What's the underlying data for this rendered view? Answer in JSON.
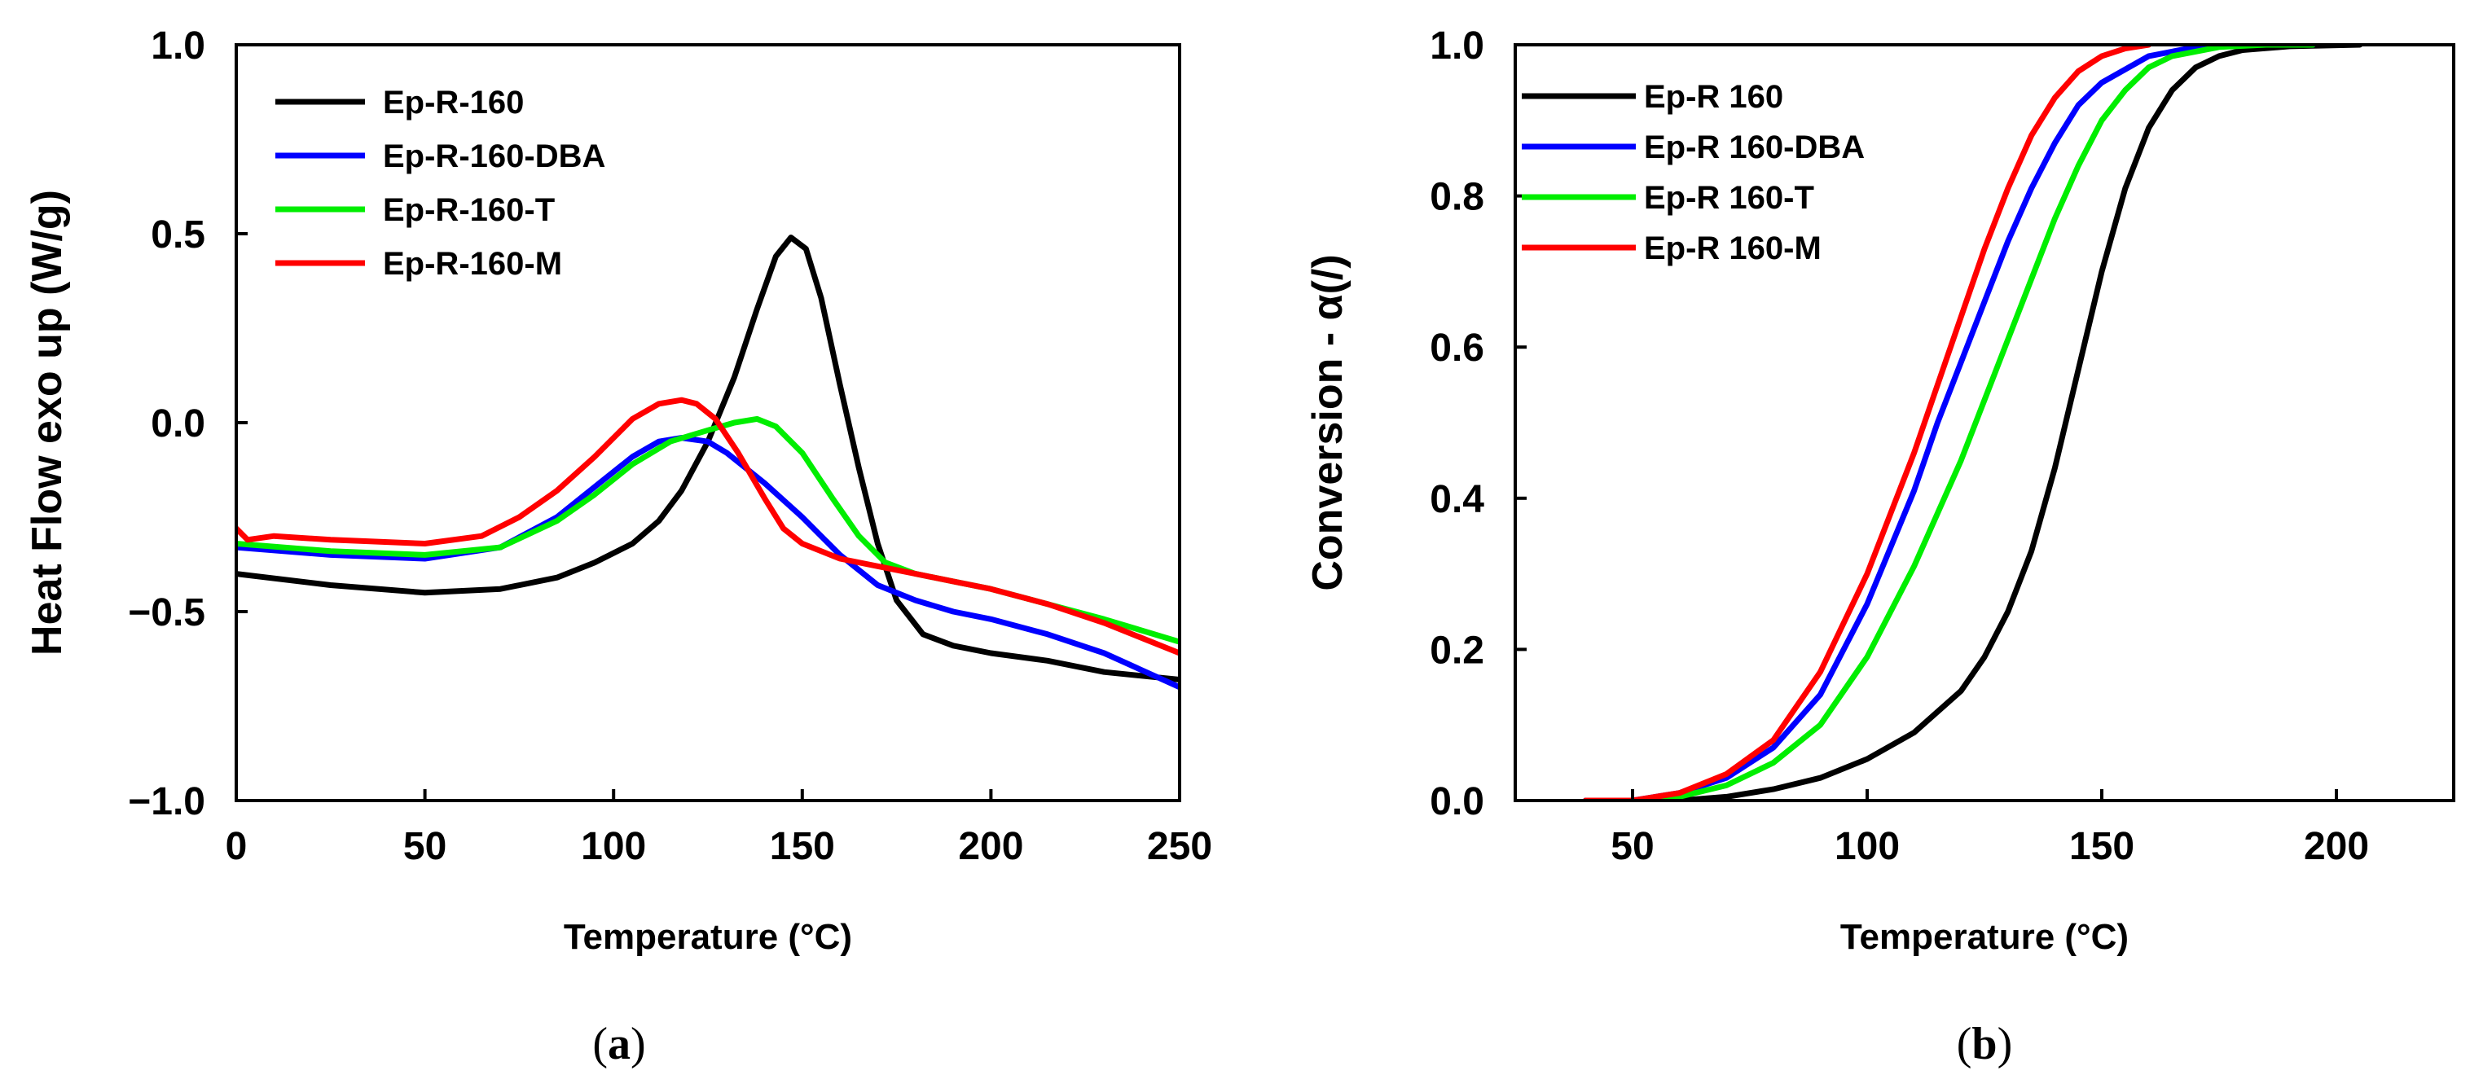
{
  "chart_data": [
    {
      "type": "line",
      "panel": "a",
      "panel_label": "a",
      "xlabel": "Temperature (°C)",
      "ylabel": "Heat Flow exo up (W/g)",
      "xlim": [
        0,
        250
      ],
      "ylim": [
        -1.0,
        1.0
      ],
      "xticks": [
        0,
        50,
        100,
        150,
        200,
        250
      ],
      "xtick_labels": [
        "0",
        "50",
        "100",
        "150",
        "200",
        "250"
      ],
      "yticks": [
        -1.0,
        -0.5,
        0.0,
        0.5,
        1.0
      ],
      "ytick_labels": [
        "−1.0",
        "−0.5",
        "0.0",
        "0.5",
        "1.0"
      ],
      "legend_position": "top-left",
      "series": [
        {
          "name": "Ep-R-160",
          "color": "#000000",
          "x": [
            0,
            25,
            50,
            70,
            85,
            95,
            105,
            112,
            118,
            125,
            132,
            138,
            143,
            147,
            151,
            155,
            160,
            165,
            170,
            175,
            182,
            190,
            200,
            215,
            230,
            250
          ],
          "y": [
            -0.4,
            -0.43,
            -0.45,
            -0.44,
            -0.41,
            -0.37,
            -0.32,
            -0.26,
            -0.18,
            -0.05,
            0.12,
            0.3,
            0.44,
            0.49,
            0.46,
            0.33,
            0.1,
            -0.12,
            -0.32,
            -0.47,
            -0.56,
            -0.59,
            -0.61,
            -0.63,
            -0.66,
            -0.68
          ]
        },
        {
          "name": "Ep-R-160-DBA",
          "color": "#0000ff",
          "x": [
            0,
            25,
            50,
            70,
            85,
            95,
            105,
            112,
            118,
            125,
            130,
            140,
            150,
            160,
            170,
            180,
            190,
            200,
            215,
            230,
            250
          ],
          "y": [
            -0.33,
            -0.35,
            -0.36,
            -0.33,
            -0.25,
            -0.17,
            -0.09,
            -0.05,
            -0.04,
            -0.05,
            -0.08,
            -0.16,
            -0.25,
            -0.35,
            -0.43,
            -0.47,
            -0.5,
            -0.52,
            -0.56,
            -0.61,
            -0.7
          ]
        },
        {
          "name": "Ep-R-160-T",
          "color": "#00ee00",
          "x": [
            0,
            25,
            50,
            70,
            85,
            95,
            105,
            115,
            125,
            132,
            138,
            143,
            150,
            158,
            165,
            172,
            180,
            190,
            200,
            215,
            230,
            250
          ],
          "y": [
            -0.32,
            -0.34,
            -0.35,
            -0.33,
            -0.26,
            -0.19,
            -0.11,
            -0.05,
            -0.02,
            0.0,
            0.01,
            -0.01,
            -0.08,
            -0.2,
            -0.3,
            -0.37,
            -0.4,
            -0.42,
            -0.44,
            -0.48,
            -0.52,
            -0.58
          ]
        },
        {
          "name": "Ep-R-160-M",
          "color": "#ff0000",
          "x": [
            0,
            3,
            10,
            25,
            50,
            65,
            75,
            85,
            95,
            105,
            112,
            118,
            122,
            127,
            133,
            140,
            145,
            150,
            160,
            170,
            180,
            190,
            200,
            215,
            230,
            250
          ],
          "y": [
            -0.28,
            -0.31,
            -0.3,
            -0.31,
            -0.32,
            -0.3,
            -0.25,
            -0.18,
            -0.09,
            0.01,
            0.05,
            0.06,
            0.05,
            0.01,
            -0.08,
            -0.2,
            -0.28,
            -0.32,
            -0.36,
            -0.38,
            -0.4,
            -0.42,
            -0.44,
            -0.48,
            -0.53,
            -0.61
          ]
        }
      ]
    },
    {
      "type": "line",
      "panel": "b",
      "panel_label": "b",
      "xlabel": "Temperature (°C)",
      "ylabel": "Conversion - α(/)",
      "xlim": [
        25,
        225
      ],
      "ylim": [
        0.0,
        1.0
      ],
      "xticks": [
        50,
        100,
        150,
        200
      ],
      "xtick_labels": [
        "50",
        "100",
        "150",
        "200"
      ],
      "yticks": [
        0.0,
        0.2,
        0.4,
        0.6,
        0.8,
        1.0
      ],
      "ytick_labels": [
        "0.0",
        "0.2",
        "0.4",
        "0.6",
        "0.8",
        "1.0"
      ],
      "legend_position": "top-left",
      "series": [
        {
          "name": "Ep-R 160",
          "color": "#000000",
          "x": [
            40,
            60,
            70,
            80,
            90,
            100,
            110,
            120,
            125,
            130,
            135,
            140,
            145,
            150,
            155,
            160,
            165,
            170,
            175,
            180,
            190,
            205
          ],
          "y": [
            0.0,
            0.0,
            0.005,
            0.015,
            0.03,
            0.055,
            0.09,
            0.145,
            0.19,
            0.25,
            0.33,
            0.44,
            0.57,
            0.7,
            0.81,
            0.89,
            0.94,
            0.97,
            0.985,
            0.993,
            0.998,
            1.0
          ]
        },
        {
          "name": "Ep-R 160-DBA",
          "color": "#0000ff",
          "x": [
            40,
            50,
            60,
            70,
            80,
            90,
            100,
            110,
            115,
            120,
            125,
            130,
            135,
            140,
            145,
            150,
            160,
            170,
            180,
            195
          ],
          "y": [
            0.0,
            0.0,
            0.01,
            0.03,
            0.07,
            0.14,
            0.26,
            0.41,
            0.5,
            0.58,
            0.66,
            0.74,
            0.81,
            0.87,
            0.92,
            0.95,
            0.985,
            0.997,
            1.0,
            1.0
          ]
        },
        {
          "name": "Ep-R 160-T",
          "color": "#00ee00",
          "x": [
            50,
            60,
            70,
            80,
            90,
            100,
            110,
            120,
            125,
            130,
            135,
            140,
            145,
            150,
            155,
            160,
            165,
            175,
            185,
            195
          ],
          "y": [
            0.0,
            0.005,
            0.02,
            0.05,
            0.1,
            0.19,
            0.31,
            0.45,
            0.53,
            0.61,
            0.69,
            0.77,
            0.84,
            0.9,
            0.94,
            0.97,
            0.985,
            0.997,
            1.0,
            1.0
          ]
        },
        {
          "name": "Ep-R 160-M",
          "color": "#ff0000",
          "x": [
            40,
            50,
            60,
            70,
            80,
            90,
            100,
            105,
            110,
            115,
            120,
            125,
            130,
            135,
            140,
            145,
            150,
            155,
            160
          ],
          "y": [
            0.0,
            0.0,
            0.01,
            0.035,
            0.08,
            0.17,
            0.3,
            0.38,
            0.46,
            0.55,
            0.64,
            0.73,
            0.81,
            0.88,
            0.93,
            0.965,
            0.985,
            0.995,
            1.0
          ]
        }
      ]
    }
  ]
}
